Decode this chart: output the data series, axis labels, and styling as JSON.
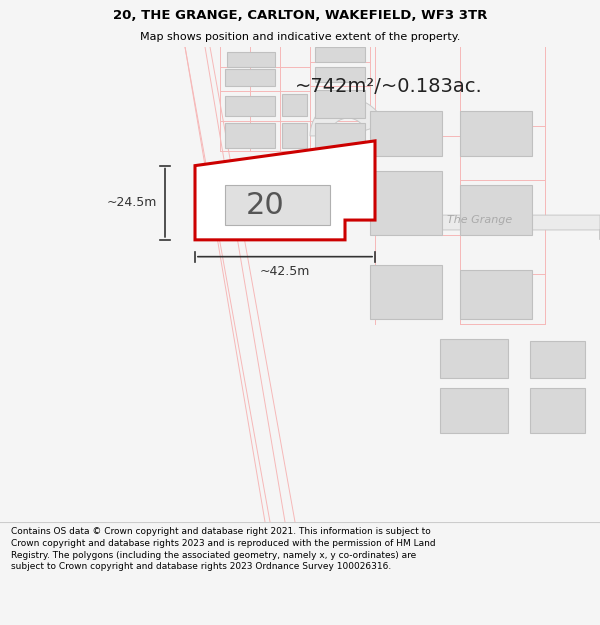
{
  "title": "20, THE GRANGE, CARLTON, WAKEFIELD, WF3 3TR",
  "subtitle": "Map shows position and indicative extent of the property.",
  "area_text": "~742m²/~0.183ac.",
  "label_main": "20",
  "dim_width": "~42.5m",
  "dim_height": "~24.5m",
  "road_label": "The Grange",
  "footer": "Contains OS data © Crown copyright and database right 2021. This information is subject to Crown copyright and database rights 2023 and is reproduced with the permission of HM Land Registry. The polygons (including the associated geometry, namely x, y co-ordinates) are subject to Crown copyright and database rights 2023 Ordnance Survey 100026316.",
  "bg_color": "#f5f5f5",
  "map_bg": "#ffffff",
  "highlight_color": "#cc0000",
  "building_fill": "#d8d8d8",
  "building_edge": "#c0c0c0",
  "faint_color": "#f5b8b8",
  "dim_color": "#333333",
  "road_outline_color": "#c8c8c8",
  "road_fill_color": "#ebebeb"
}
